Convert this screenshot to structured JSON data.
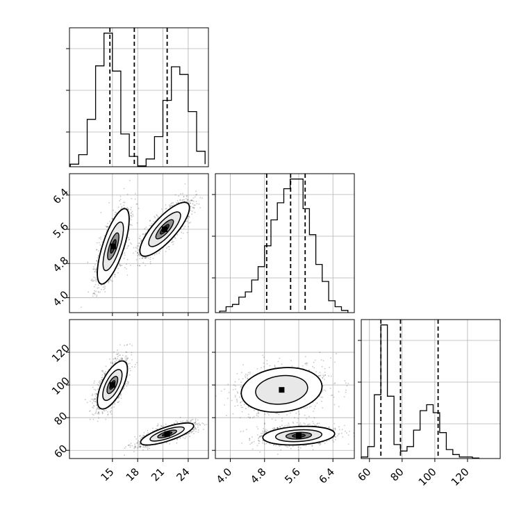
{
  "chart_data": {
    "type": "corner",
    "parameters": [
      "",
      "",
      ""
    ],
    "grid": true,
    "quantiles": [
      0.16,
      0.5,
      0.84
    ],
    "histograms": [
      {
        "parameter_index": 0,
        "bins": [
          10,
          11,
          12,
          13,
          14,
          15,
          16,
          17,
          18,
          19,
          20,
          21,
          22,
          23,
          24,
          25,
          26
        ],
        "counts": [
          3,
          14,
          55,
          117,
          155,
          111,
          38,
          12,
          1,
          9,
          35,
          77,
          116,
          107,
          64,
          18,
          3
        ],
        "quantile_lines": [
          14.7,
          17.6,
          21.5
        ]
      },
      {
        "parameter_index": 1,
        "bins": [
          3.75,
          3.9,
          4.05,
          4.2,
          4.35,
          4.5,
          4.65,
          4.8,
          4.95,
          5.1,
          5.25,
          5.4,
          5.55,
          5.7,
          5.85,
          6.0,
          6.15,
          6.3,
          6.45,
          6.6,
          6.75
        ],
        "counts": [
          2,
          8,
          11,
          21,
          28,
          44,
          62,
          90,
          125,
          148,
          167,
          180,
          180,
          140,
          105,
          65,
          42,
          16,
          8,
          3
        ],
        "quantile_lines": [
          4.85,
          5.41,
          5.75
        ]
      },
      {
        "parameter_index": 2,
        "bins": [
          55,
          59,
          63,
          67,
          71,
          75,
          79,
          83,
          87,
          91,
          95,
          99,
          103,
          107,
          111,
          115,
          119,
          123,
          127
        ],
        "counts": [
          3,
          24,
          128,
          268,
          125,
          28,
          15,
          24,
          57,
          96,
          108,
          92,
          52,
          18,
          8,
          3,
          3,
          1
        ],
        "quantile_lines": [
          67,
          79,
          102
        ]
      }
    ],
    "panels": [
      {
        "x_parameter": 0,
        "y_parameter": 1,
        "clusters": [
          {
            "center_x": 15.1,
            "center_y": 5.2,
            "sd_x": 0.9,
            "sd_y": 0.42,
            "correlation": 0.72
          },
          {
            "center_x": 21.2,
            "center_y": 5.6,
            "sd_x": 1.4,
            "sd_y": 0.3,
            "correlation": 0.8
          }
        ]
      },
      {
        "x_parameter": 0,
        "y_parameter": 2,
        "clusters": [
          {
            "center_x": 15.0,
            "center_y": 100,
            "sd_x": 0.85,
            "sd_y": 7,
            "correlation": 0.65
          },
          {
            "center_x": 21.5,
            "center_y": 70,
            "sd_x": 1.5,
            "sd_y": 3.2,
            "correlation": 0.75
          }
        ]
      },
      {
        "x_parameter": 1,
        "y_parameter": 2,
        "clusters": [
          {
            "center_x": 5.2,
            "center_y": 97,
            "sd_x": 0.45,
            "sd_y": 6.5,
            "correlation": 0.15
          },
          {
            "center_x": 5.6,
            "center_y": 69,
            "sd_x": 0.4,
            "sd_y": 2.7,
            "correlation": 0.2
          }
        ]
      }
    ],
    "axes": {
      "x_ranges": [
        [
          9.9,
          26.4
        ],
        [
          3.65,
          6.9
        ],
        [
          55,
          140
        ]
      ],
      "y_ranges": [
        [
          3.65,
          6.9
        ],
        [
          55,
          140
        ]
      ],
      "x_ticks": [
        {
          "values": [
            15,
            18,
            21,
            24
          ],
          "labels": [
            "15",
            "18",
            "21",
            "24"
          ]
        },
        {
          "values": [
            4.0,
            4.8,
            5.6,
            6.4
          ],
          "labels": [
            "4.0",
            "4.8",
            "5.6",
            "6.4"
          ]
        },
        {
          "values": [
            60,
            80,
            100,
            120
          ],
          "labels": [
            "60",
            "80",
            "100",
            "120"
          ]
        }
      ],
      "y_ticks": [
        {
          "values": [
            4.0,
            4.8,
            5.6,
            6.4
          ],
          "labels": [
            "4.0",
            "4.8",
            "5.6",
            "6.4"
          ]
        },
        {
          "values": [
            60,
            80,
            100,
            120
          ],
          "labels": [
            "60",
            "80",
            "100",
            "120"
          ]
        }
      ]
    }
  }
}
